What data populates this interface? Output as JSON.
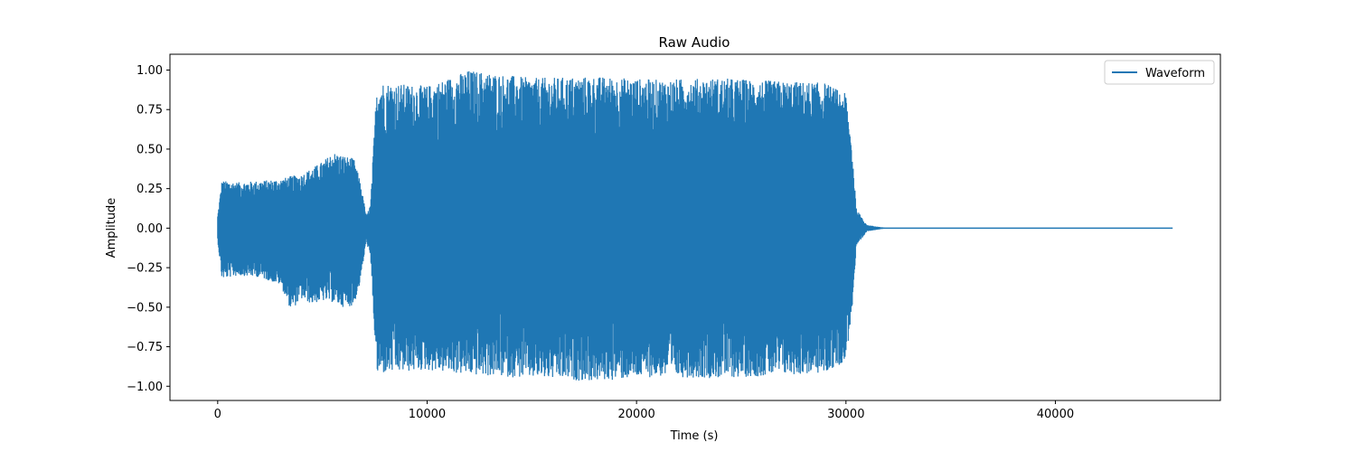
{
  "chart_data": {
    "type": "line",
    "title": "Raw Audio",
    "xlabel": "Time (s)",
    "ylabel": "Amplitude",
    "xlim": [
      -2280,
      47880
    ],
    "ylim": [
      -1.09,
      1.1
    ],
    "x_ticks": [
      0,
      10000,
      20000,
      30000,
      40000
    ],
    "x_tick_labels": [
      "0",
      "10000",
      "20000",
      "30000",
      "40000"
    ],
    "y_ticks": [
      1.0,
      0.75,
      0.5,
      0.25,
      0.0,
      -0.25,
      -0.5,
      -0.75,
      -1.0
    ],
    "y_tick_labels": [
      "1.00",
      "0.75",
      "0.50",
      "0.25",
      "0.00",
      "−0.25",
      "−0.50",
      "−0.75",
      "−1.00"
    ],
    "grid": false,
    "legend_position": "top-right",
    "series": [
      {
        "name": "Waveform",
        "color": "#1f77b4",
        "x_range": [
          0,
          45600
        ],
        "envelope": {
          "x": [
            0,
            200,
            1000,
            2000,
            3000,
            3500,
            4000,
            4500,
            5000,
            5500,
            6000,
            6500,
            6800,
            7100,
            7300,
            7600,
            8000,
            10000,
            12000,
            15000,
            18000,
            21000,
            24000,
            27000,
            29000,
            30000,
            30300,
            30500,
            31000,
            32000,
            45600
          ],
          "upper": [
            0.08,
            0.3,
            0.29,
            0.3,
            0.31,
            0.33,
            0.34,
            0.38,
            0.42,
            0.48,
            0.46,
            0.44,
            0.3,
            0.08,
            0.15,
            0.93,
            0.92,
            0.9,
            1.0,
            0.95,
            0.96,
            0.94,
            0.95,
            0.93,
            0.92,
            0.85,
            0.5,
            0.12,
            0.02,
            0.0,
            0.0
          ],
          "lower": [
            -0.08,
            -0.32,
            -0.3,
            -0.31,
            -0.36,
            -0.52,
            -0.45,
            -0.48,
            -0.46,
            -0.47,
            -0.5,
            -0.49,
            -0.35,
            -0.08,
            -0.2,
            -0.93,
            -0.92,
            -0.9,
            -0.93,
            -0.95,
            -0.97,
            -0.94,
            -0.95,
            -0.93,
            -0.92,
            -0.84,
            -0.5,
            -0.12,
            -0.02,
            0.0,
            0.0
          ]
        }
      }
    ]
  }
}
